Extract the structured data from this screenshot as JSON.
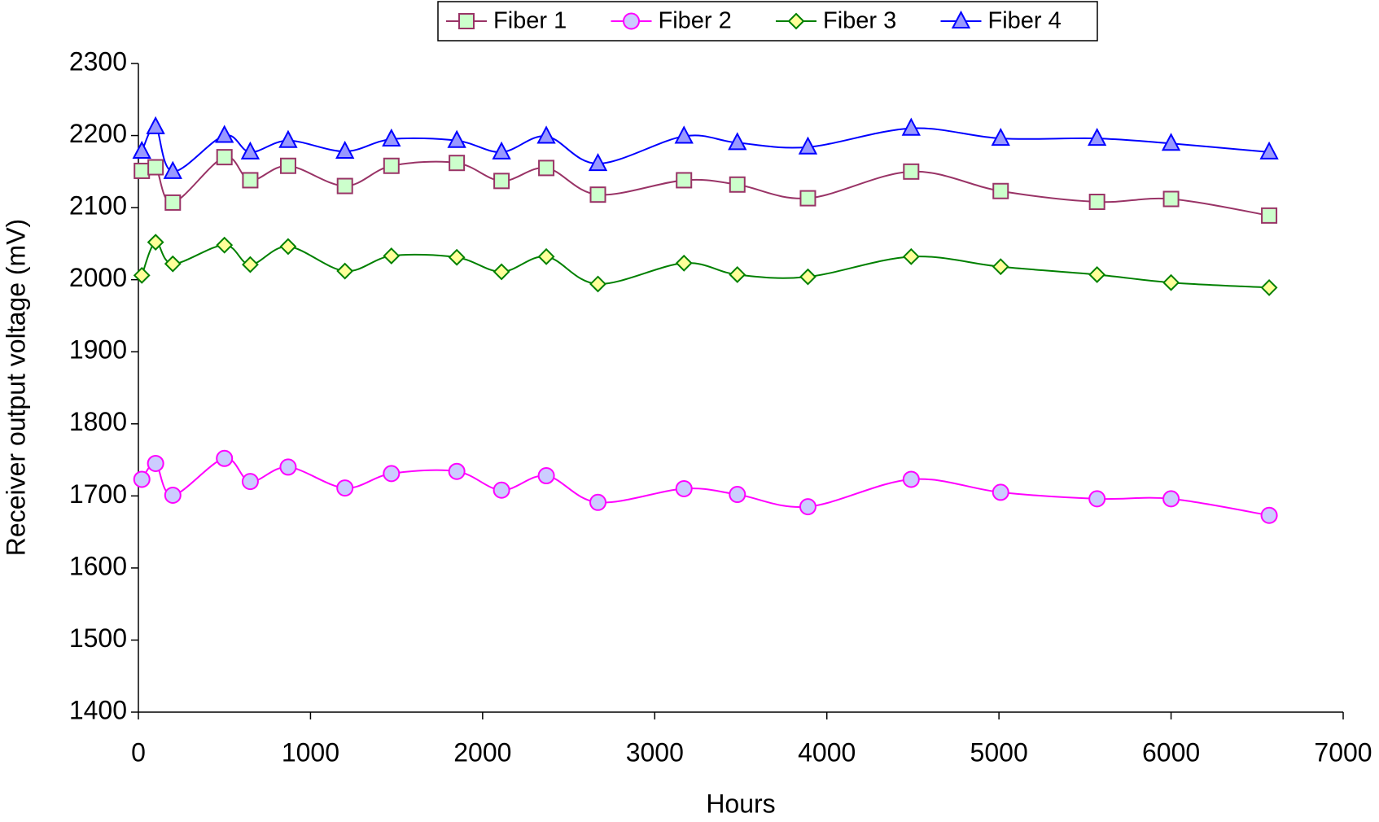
{
  "chart_data": {
    "type": "line",
    "xlabel": "Hours",
    "ylabel": "Receiver output voltage  (mV)",
    "x": [
      20,
      100,
      200,
      500,
      650,
      870,
      1200,
      1470,
      1850,
      2110,
      2370,
      2670,
      3170,
      3480,
      3890,
      4490,
      5010,
      5570,
      6000,
      6570
    ],
    "series": [
      {
        "name": "Fiber 1",
        "color": "#993366",
        "marker": "square",
        "marker_fill": "#ccffcc",
        "values": [
          2151,
          2156,
          2107,
          2170,
          2138,
          2158,
          2130,
          2158,
          2162,
          2137,
          2155,
          2118,
          2138,
          2132,
          2113,
          2150,
          2123,
          2108,
          2112,
          2089
        ]
      },
      {
        "name": "Fiber 2",
        "color": "#ff00ff",
        "marker": "circle",
        "marker_fill": "#ccccff",
        "values": [
          1723,
          1745,
          1701,
          1752,
          1720,
          1740,
          1711,
          1731,
          1734,
          1708,
          1728,
          1691,
          1710,
          1702,
          1685,
          1723,
          1705,
          1696,
          1696,
          1673
        ]
      },
      {
        "name": "Fiber 3",
        "color": "#008000",
        "marker": "diamond",
        "marker_fill": "#ffff99",
        "values": [
          2006,
          2052,
          2022,
          2048,
          2021,
          2046,
          2012,
          2033,
          2031,
          2011,
          2032,
          1994,
          2023,
          2007,
          2004,
          2032,
          2018,
          2007,
          1996,
          1989
        ]
      },
      {
        "name": "Fiber 4",
        "color": "#0000ff",
        "marker": "triangle",
        "marker_fill": "#9999ff",
        "values": [
          2178,
          2212,
          2150,
          2200,
          2177,
          2193,
          2178,
          2195,
          2193,
          2177,
          2199,
          2161,
          2199,
          2190,
          2184,
          2210,
          2196,
          2196,
          2189,
          2177
        ]
      }
    ],
    "xlim": [
      0,
      7000
    ],
    "xticks": [
      0,
      1000,
      2000,
      3000,
      4000,
      5000,
      6000,
      7000
    ],
    "ylim": [
      1400,
      2300
    ],
    "yticks": [
      1400,
      1500,
      1600,
      1700,
      1800,
      1900,
      2000,
      2100,
      2200,
      2300
    ],
    "grid": false,
    "legend": "top"
  }
}
